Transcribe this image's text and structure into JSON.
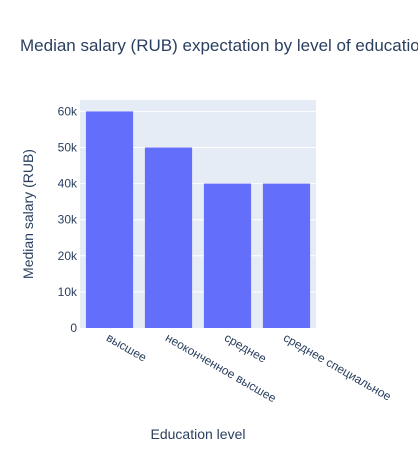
{
  "chart_data": {
    "type": "bar",
    "title": "Median salary (RUB) expectation by level of education",
    "xlabel": "Education level",
    "ylabel": "Median salary (RUB)",
    "categories": [
      "высшее",
      "неоконченное высшее",
      "среднее",
      "среднее специальное"
    ],
    "values": [
      60000,
      50000,
      40000,
      40000
    ],
    "ylim": [
      0,
      63157.89
    ],
    "yticks": [
      0,
      10000,
      20000,
      30000,
      40000,
      50000,
      60000
    ],
    "ytick_labels": [
      "0",
      "10k",
      "20k",
      "30k",
      "40k",
      "50k",
      "60k"
    ],
    "grid": true,
    "legend": "none",
    "colors": {
      "bar": "#636efa",
      "plot_bg": "#e5ecf6",
      "grid": "#ffffff",
      "text": "#2a3f5f"
    }
  }
}
